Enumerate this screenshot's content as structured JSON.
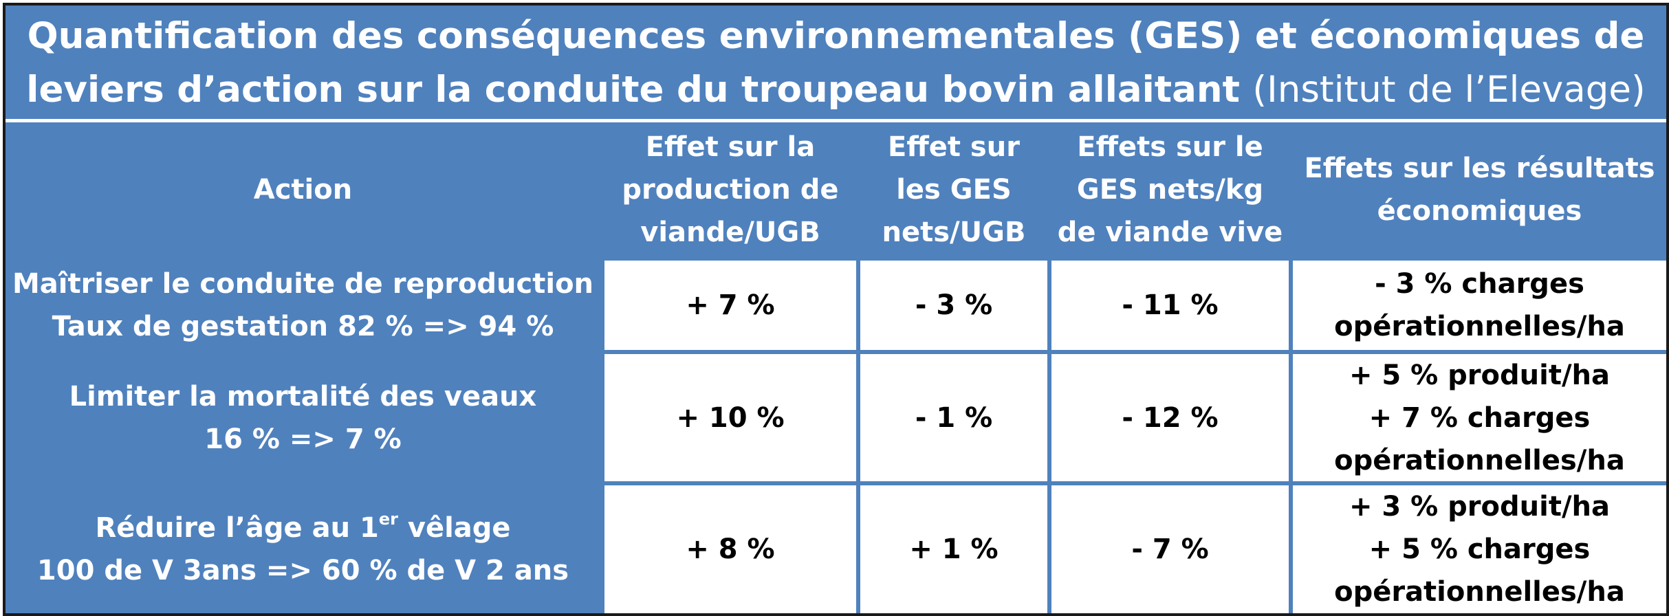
{
  "title": {
    "line1": "Quantification des conséquences environnementales (GES) et économiques de",
    "line2": "leviers d’action sur la conduite du troupeau bovin allaitant",
    "source": "(Institut de l’Elevage)"
  },
  "headers": {
    "action": "Action",
    "production": [
      "Effet sur la",
      "production de",
      "viande/UGB"
    ],
    "ges_ugb": [
      "Effet sur",
      "les GES",
      "nets/UGB"
    ],
    "ges_kg": [
      "Effets sur le",
      "GES nets/kg",
      "de viande vive"
    ],
    "economic": [
      "Effets sur les résultats",
      "économiques"
    ]
  },
  "rows": [
    {
      "action": [
        "Maîtriser le conduite de reproduction",
        "Taux de gestation 82 % => 94 %"
      ],
      "production": "+ 7 %",
      "ges_ugb": "- 3 %",
      "ges_kg": "- 11 %",
      "economic": [
        "- 3 % charges",
        "opérationnelles/ha"
      ]
    },
    {
      "action": [
        "Limiter la mortalité des veaux",
        "16 % => 7 %"
      ],
      "production": "+ 10 %",
      "ges_ugb": "- 1 %",
      "ges_kg": "- 12 %",
      "economic": [
        "+ 5 % produit/ha",
        "+ 7 % charges",
        "opérationnelles/ha"
      ]
    },
    {
      "action": [
        "Réduire l’âge au 1",
        "er",
        " vêlage",
        "100 de V 3ans => 60 % de V 2 ans"
      ],
      "production": "+ 8 %",
      "ges_ugb": "+ 1 %",
      "ges_kg": "- 7 %",
      "economic": [
        "+ 3 % produit/ha",
        "+ 5 % charges",
        "opérationnelles/ha"
      ]
    }
  ],
  "colors": {
    "header_blue": "#4f81bd",
    "text_white": "#ffffff",
    "text_black": "#000000"
  }
}
